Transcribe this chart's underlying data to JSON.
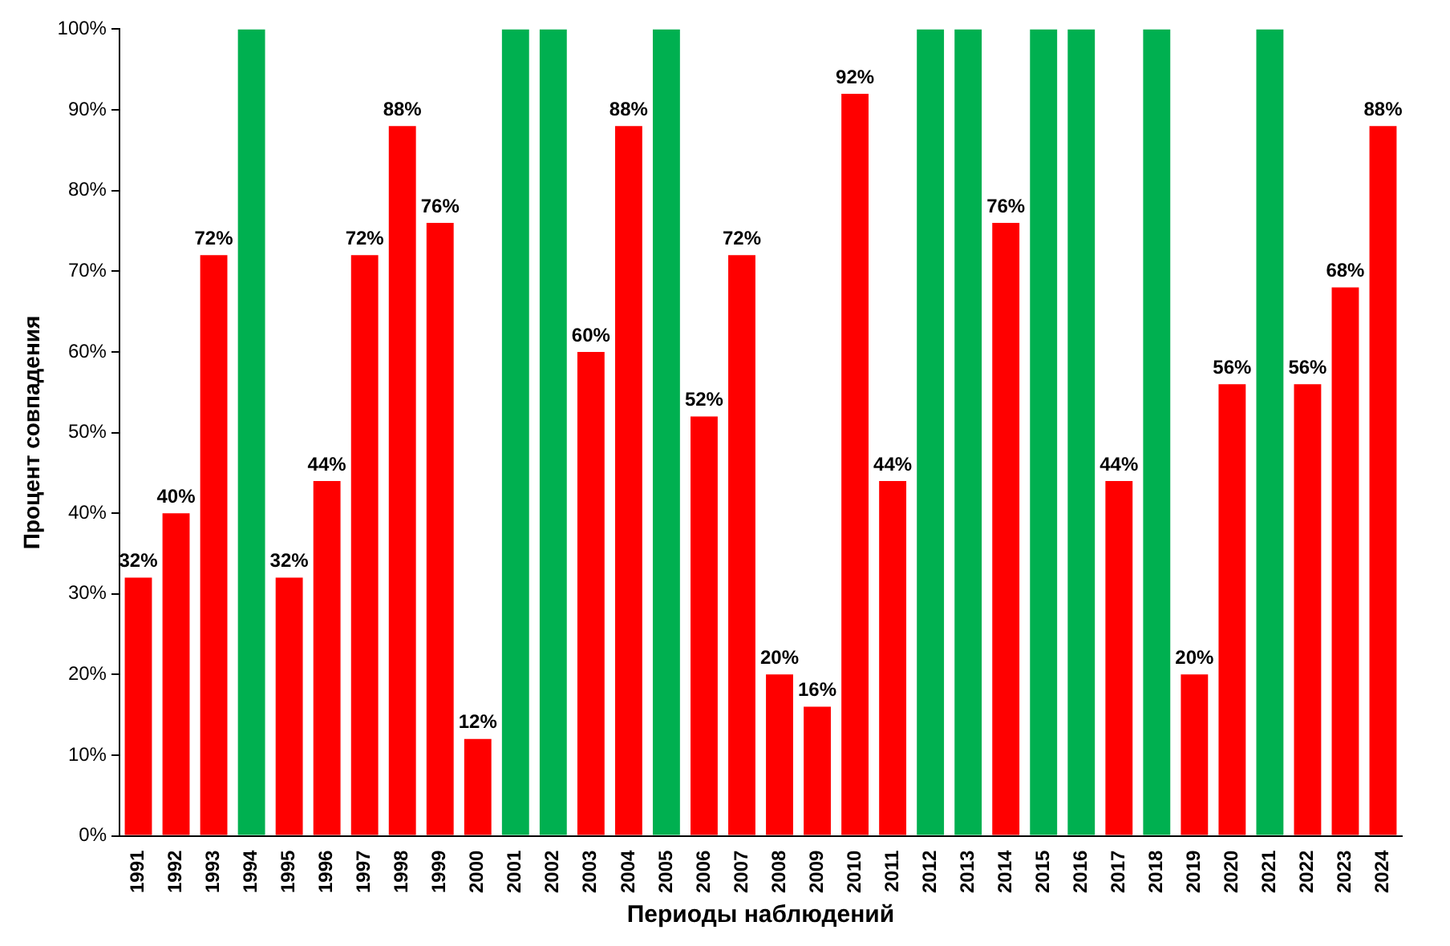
{
  "chart_data": {
    "type": "bar",
    "xlabel": "Периоды наблюдений",
    "ylabel": "Процент совпадения",
    "categories": [
      "1991",
      "1992",
      "1993",
      "1994",
      "1995",
      "1996",
      "1997",
      "1998",
      "1999",
      "2000",
      "2001",
      "2002",
      "2003",
      "2004",
      "2005",
      "2006",
      "2007",
      "2008",
      "2009",
      "2010",
      "2011",
      "2012",
      "2013",
      "2014",
      "2015",
      "2016",
      "2017",
      "2018",
      "2019",
      "2020",
      "2021",
      "2022",
      "2023",
      "2024"
    ],
    "values": [
      32,
      40,
      72,
      100,
      32,
      44,
      72,
      88,
      76,
      12,
      100,
      100,
      60,
      88,
      100,
      52,
      72,
      20,
      16,
      92,
      44,
      100,
      100,
      76,
      100,
      100,
      44,
      100,
      20,
      56,
      100,
      56,
      68,
      88
    ],
    "colors": [
      "#ff0000",
      "#ff0000",
      "#ff0000",
      "#00b050",
      "#ff0000",
      "#ff0000",
      "#ff0000",
      "#ff0000",
      "#ff0000",
      "#ff0000",
      "#00b050",
      "#00b050",
      "#ff0000",
      "#ff0000",
      "#00b050",
      "#ff0000",
      "#ff0000",
      "#ff0000",
      "#ff0000",
      "#ff0000",
      "#ff0000",
      "#00b050",
      "#00b050",
      "#ff0000",
      "#00b050",
      "#00b050",
      "#ff0000",
      "#00b050",
      "#ff0000",
      "#ff0000",
      "#00b050",
      "#ff0000",
      "#ff0000",
      "#ff0000"
    ],
    "value_labels": [
      "32%",
      "40%",
      "72%",
      null,
      "32%",
      "44%",
      "72%",
      "88%",
      "76%",
      "12%",
      null,
      null,
      "60%",
      "88%",
      null,
      "52%",
      "72%",
      "20%",
      "16%",
      "92%",
      "44%",
      null,
      null,
      "76%",
      null,
      null,
      "44%",
      null,
      "20%",
      "56%",
      null,
      "56%",
      "68%",
      "88%"
    ],
    "ylim": [
      0,
      100
    ],
    "yticks": [
      {
        "value": 0,
        "label": "0%"
      },
      {
        "value": 10,
        "label": "10%"
      },
      {
        "value": 20,
        "label": "20%"
      },
      {
        "value": 30,
        "label": "30%"
      },
      {
        "value": 40,
        "label": "40%"
      },
      {
        "value": 50,
        "label": "50%"
      },
      {
        "value": 60,
        "label": "60%"
      },
      {
        "value": 70,
        "label": "70%"
      },
      {
        "value": 80,
        "label": "80%"
      },
      {
        "value": 90,
        "label": "90%"
      },
      {
        "value": 100,
        "label": "100%"
      }
    ]
  }
}
